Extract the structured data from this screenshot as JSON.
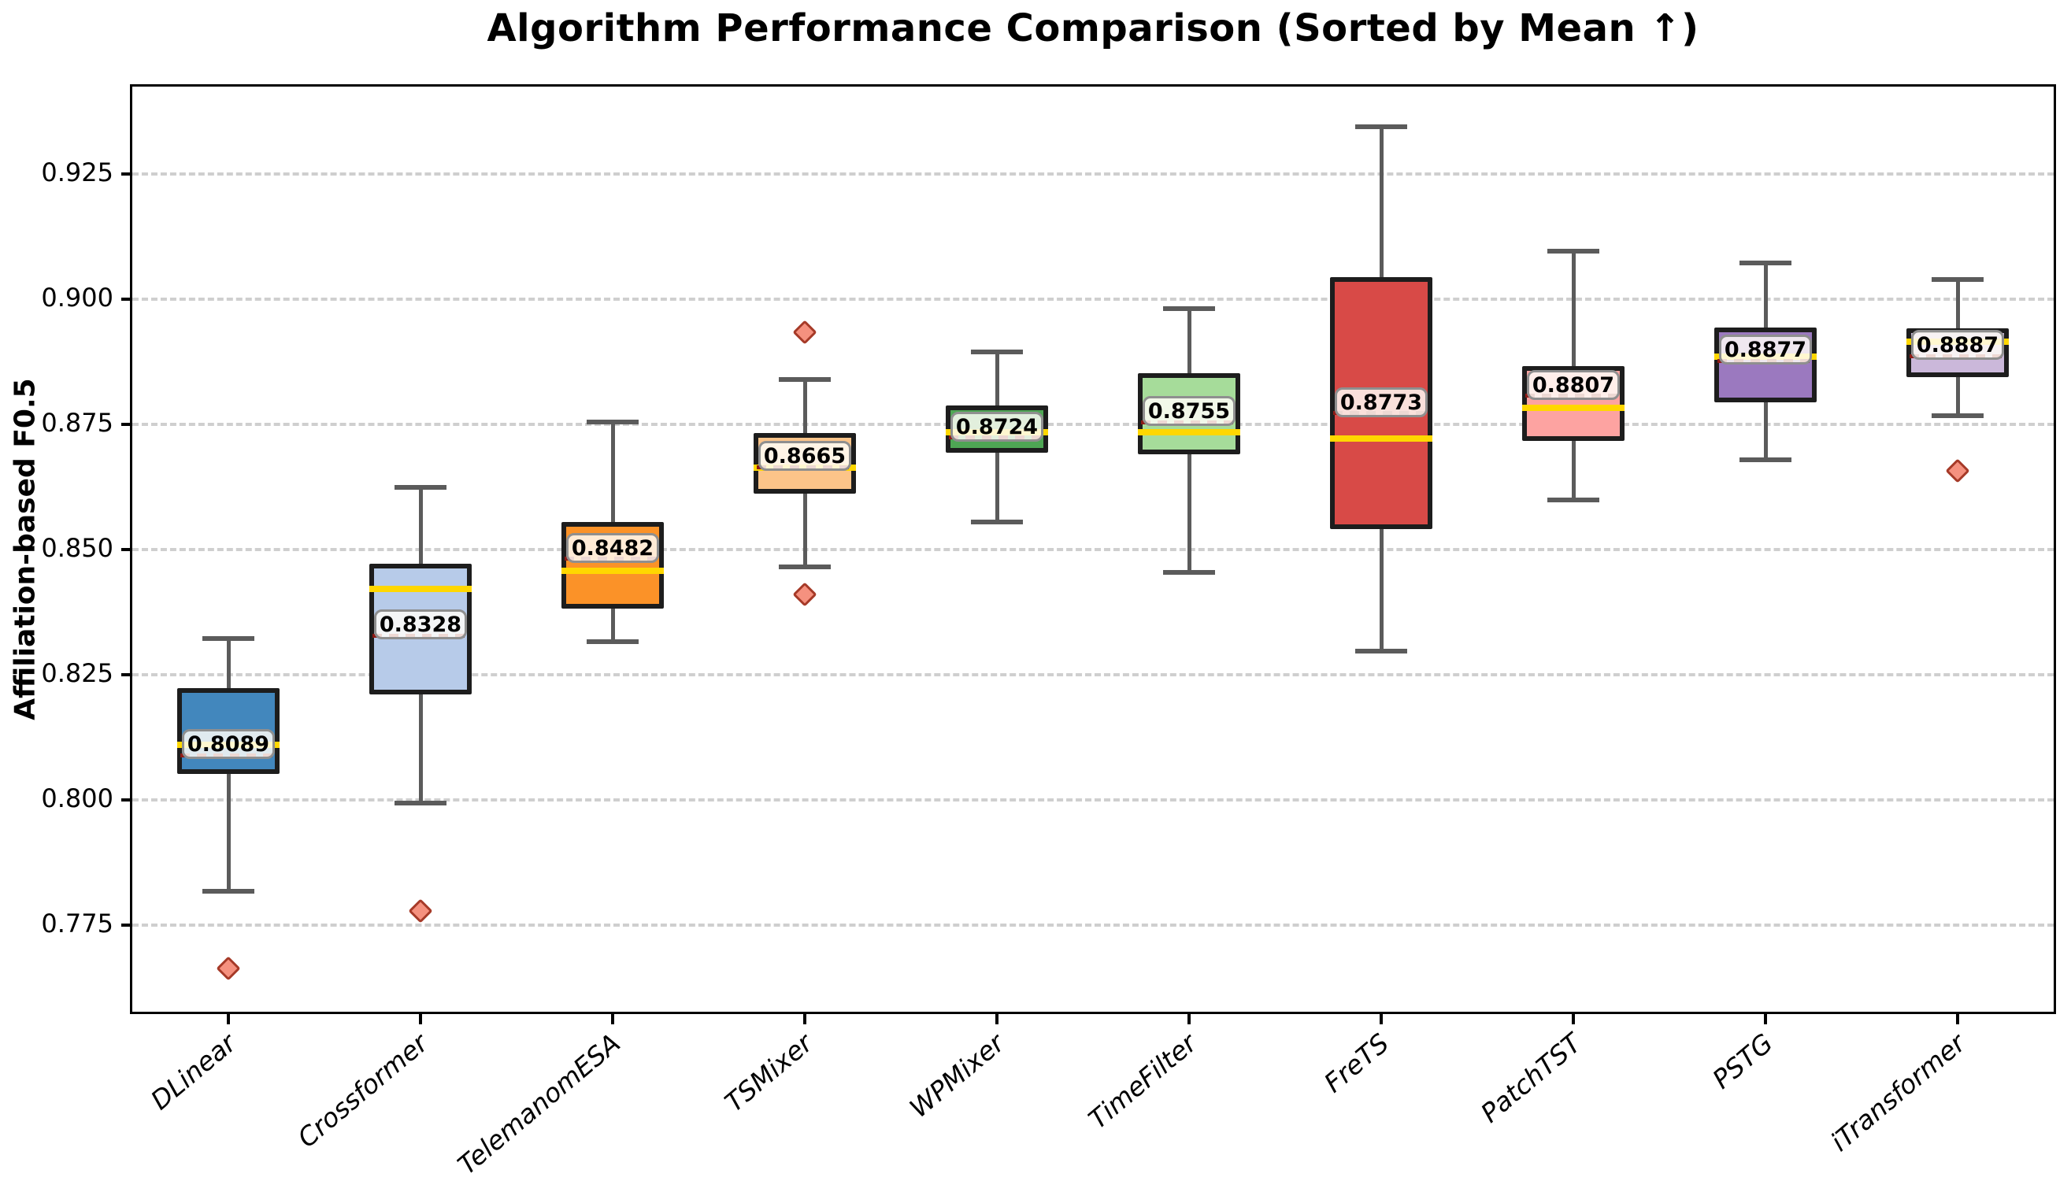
{
  "chart_data": {
    "type": "boxplot",
    "title": "Algorithm Performance Comparison (Sorted by Mean ↑)",
    "ylabel": "Affiliation-based F0.5",
    "ylim": [
      0.7577,
      0.9425
    ],
    "yticks": [
      0.925,
      0.9,
      0.875,
      0.85,
      0.825,
      0.8,
      0.775
    ],
    "ytick_labels": [
      "0.925",
      "0.900",
      "0.875",
      "0.850",
      "0.825",
      "0.800",
      "0.775"
    ],
    "grid": "horizontal-dashed",
    "legend": "none",
    "categories": [
      "DLinear",
      "Crossformer",
      "TelemanomESA",
      "TSMixer",
      "WPMixer",
      "TimeFilter",
      "FreTS",
      "PatchTST",
      "PSTG",
      "iTransformer"
    ],
    "series": [
      {
        "name": "DLinear",
        "color": "#4287bd",
        "whisker_low": 0.7817,
        "q1": 0.8052,
        "median": 0.811,
        "q3": 0.8223,
        "whisker_high": 0.8322,
        "mean": 0.8089,
        "mean_label": "0.8089",
        "outliers": [
          0.7664
        ]
      },
      {
        "name": "Crossformer",
        "color": "#b7cbe9",
        "whisker_low": 0.7994,
        "q1": 0.8211,
        "median": 0.8421,
        "q3": 0.8472,
        "whisker_high": 0.8624,
        "mean": 0.8328,
        "mean_label": "0.8328",
        "outliers": [
          0.7778
        ]
      },
      {
        "name": "TelemanomESA",
        "color": "#fb9228",
        "whisker_low": 0.8316,
        "q1": 0.8383,
        "median": 0.8458,
        "q3": 0.8555,
        "whisker_high": 0.8755,
        "mean": 0.8482,
        "mean_label": "0.8482",
        "outliers": []
      },
      {
        "name": "TSMixer",
        "color": "#fcc489",
        "whisker_low": 0.8465,
        "q1": 0.8612,
        "median": 0.8663,
        "q3": 0.8733,
        "whisker_high": 0.884,
        "mean": 0.8665,
        "mean_label": "0.8665",
        "outliers": [
          0.8934,
          0.841
        ]
      },
      {
        "name": "WPMixer",
        "color": "#4ea654",
        "whisker_low": 0.8555,
        "q1": 0.8693,
        "median": 0.8734,
        "q3": 0.8788,
        "whisker_high": 0.8895,
        "mean": 0.8724,
        "mean_label": "0.8724",
        "outliers": []
      },
      {
        "name": "TimeFilter",
        "color": "#a6dc9a",
        "whisker_low": 0.8455,
        "q1": 0.8691,
        "median": 0.8735,
        "q3": 0.8853,
        "whisker_high": 0.8982,
        "mean": 0.8755,
        "mean_label": "0.8755",
        "outliers": []
      },
      {
        "name": "FreTS",
        "color": "#d84a47",
        "whisker_low": 0.8298,
        "q1": 0.8541,
        "median": 0.8722,
        "q3": 0.9045,
        "whisker_high": 0.9345,
        "mean": 0.8773,
        "mean_label": "0.8773",
        "outliers": []
      },
      {
        "name": "PatchTST",
        "color": "#fda3a1",
        "whisker_low": 0.86,
        "q1": 0.8717,
        "median": 0.8784,
        "q3": 0.8866,
        "whisker_high": 0.9096,
        "mean": 0.8807,
        "mean_label": "0.8807",
        "outliers": []
      },
      {
        "name": "PSTG",
        "color": "#9b79bf",
        "whisker_low": 0.8679,
        "q1": 0.8795,
        "median": 0.8885,
        "q3": 0.8943,
        "whisker_high": 0.9073,
        "mean": 0.8877,
        "mean_label": "0.8877",
        "outliers": []
      },
      {
        "name": "iTransformer",
        "color": "#cbb8da",
        "whisker_low": 0.8767,
        "q1": 0.8844,
        "median": 0.8915,
        "q3": 0.8942,
        "whisker_high": 0.9039,
        "mean": 0.8887,
        "mean_label": "0.8887",
        "outliers": [
          0.8657
        ]
      }
    ],
    "style": {
      "median_color": "#ffd700",
      "mean_line_color": "#8e1a15",
      "whisker_color": "#5b5b5b",
      "box_edge_color": "#1d1d1d",
      "grid_color": "#cfcfcf",
      "outlier_fill": "#f5917f",
      "outlier_edge": "#a63a28",
      "label_background": "#fffdf8",
      "label_border": "#8f8f8f"
    }
  }
}
